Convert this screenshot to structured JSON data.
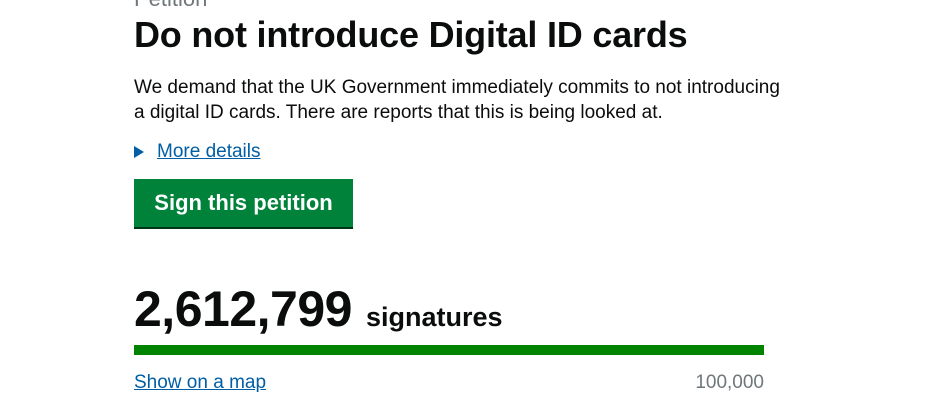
{
  "caption": "Petition",
  "title": "Do not introduce Digital ID cards",
  "description": "We demand that the UK Government immediately commits to not introducing a digital ID cards. There are reports that this is being looked at.",
  "more_details_label": "More details",
  "sign_button_label": "Sign this petition",
  "signatures": {
    "count": "2,612,799",
    "label": "signatures"
  },
  "progress": {
    "percent": 100,
    "target": "100,000"
  },
  "show_map_label": "Show on a map",
  "colors": {
    "button": "#00823b",
    "bar": "#008400",
    "link": "#005ea5"
  }
}
